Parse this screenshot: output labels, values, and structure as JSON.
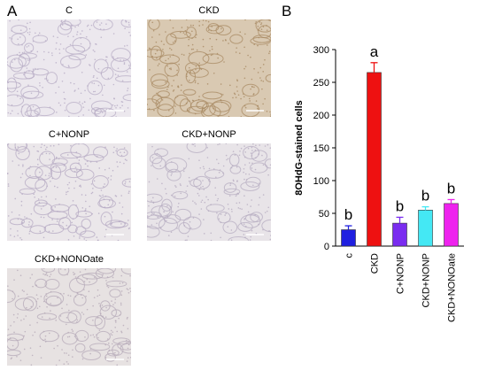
{
  "panel_a": {
    "letter": "A",
    "images": [
      {
        "label": "C",
        "tissue": "#ece8ee",
        "dot": "#b8adc6"
      },
      {
        "label": "CKD",
        "tissue": "#d9c9b2",
        "dot": "#a88a63"
      },
      {
        "label": "C+NONP",
        "tissue": "#ebe7ea",
        "dot": "#b5aac3"
      },
      {
        "label": "CKD+NONP",
        "tissue": "#e8e4e8",
        "dot": "#b7adc1"
      },
      {
        "label": "CKD+NONOate",
        "tissue": "#e7e2e2",
        "dot": "#b6aab8"
      }
    ]
  },
  "panel_b": {
    "letter": "B"
  },
  "chart_data": {
    "type": "bar",
    "categories": [
      "c",
      "CKD",
      "C+NONP",
      "CKD+NONP",
      "CKD+NONOate"
    ],
    "values": [
      25,
      265,
      35,
      55,
      65
    ],
    "errors": [
      6,
      15,
      9,
      5,
      6
    ],
    "colors": [
      "#1f1fe0",
      "#ee1111",
      "#7a2cf0",
      "#44e8f4",
      "#ee22ee"
    ],
    "significance": [
      "b",
      "a",
      "b",
      "b",
      "b"
    ],
    "title": "",
    "xlabel": "",
    "ylabel": "8OHdG-stained cells",
    "ylim": [
      0,
      300
    ],
    "yticks": [
      0,
      50,
      100,
      150,
      200,
      250,
      300
    ]
  }
}
